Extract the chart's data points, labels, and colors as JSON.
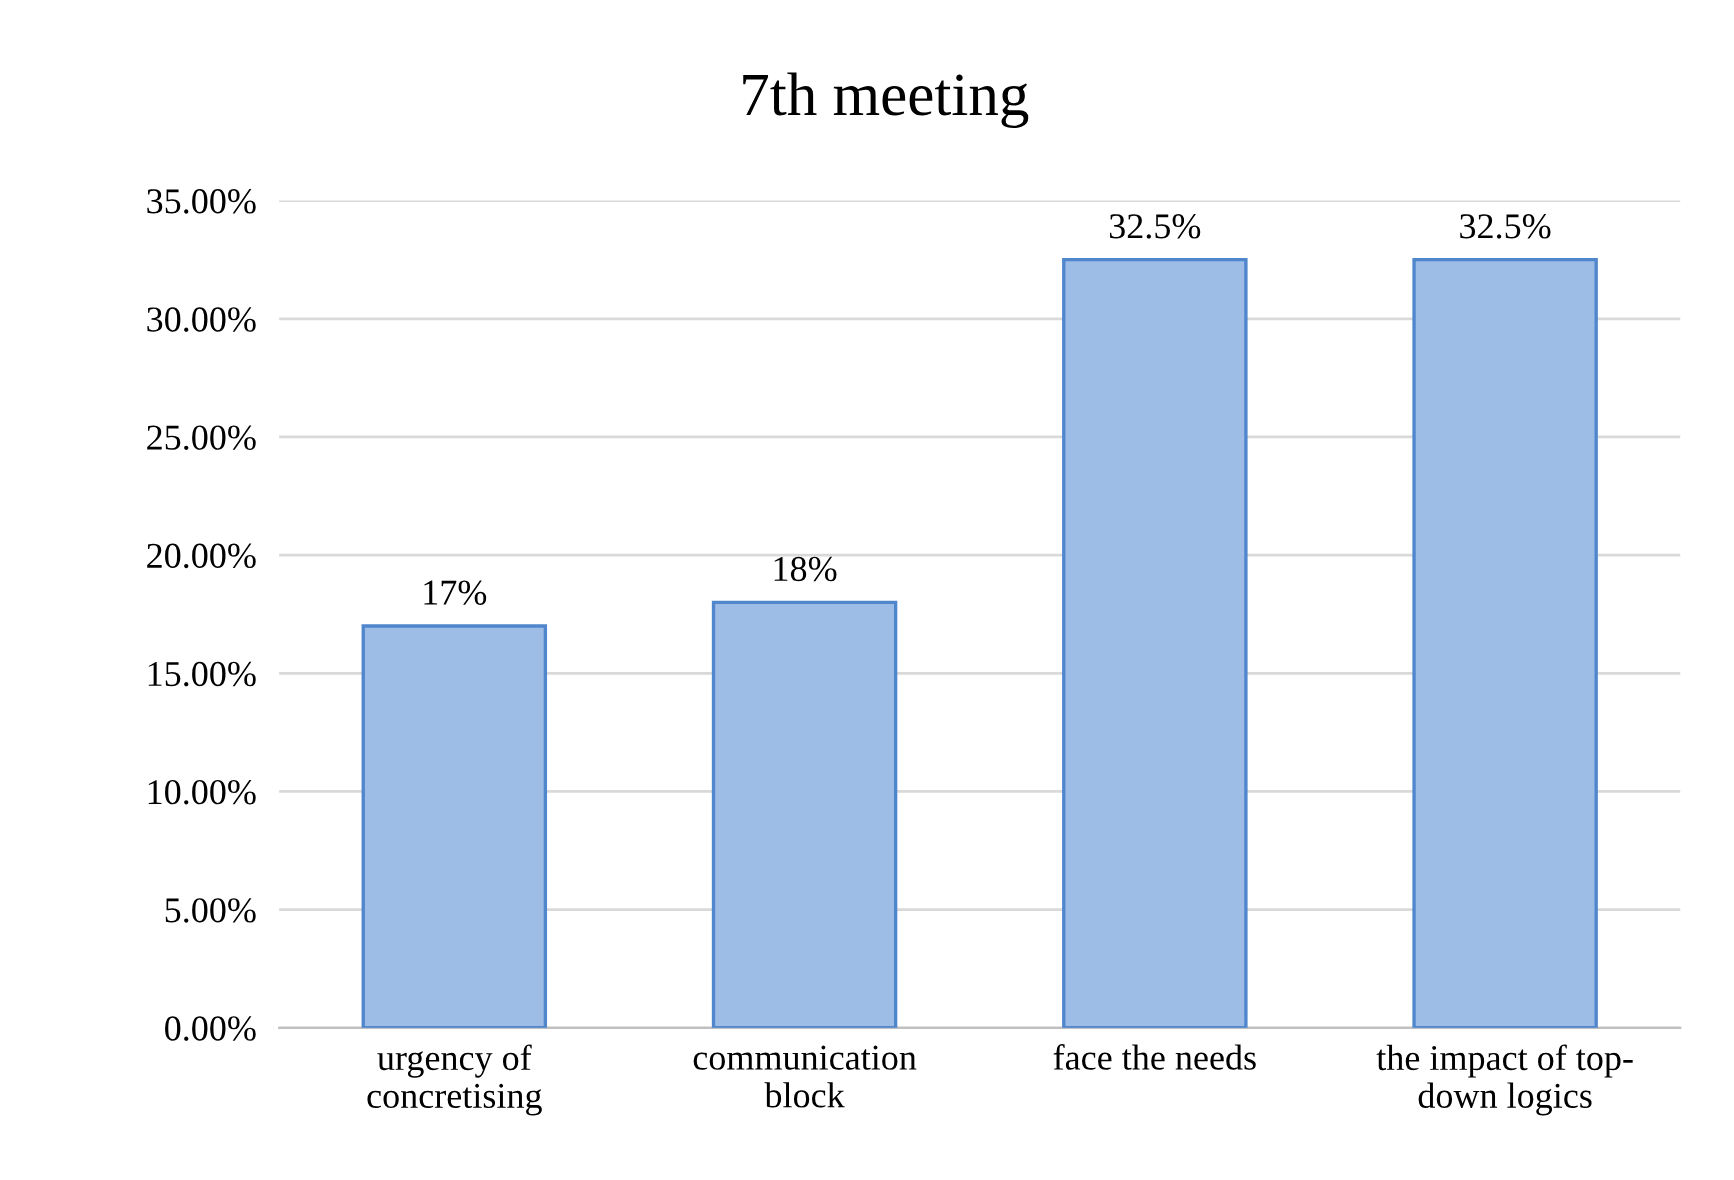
{
  "chart_data": {
    "type": "bar",
    "title": "7th meeting",
    "categories": [
      "urgency of\nconcretising",
      "communication\nblock",
      "face the needs",
      "the impact of top-\ndown logics"
    ],
    "values": [
      17,
      18,
      32.5,
      32.5
    ],
    "value_labels": [
      "17%",
      "18%",
      "32.5%",
      "32.5%"
    ],
    "color": "#9dbce6",
    "ylim": [
      0,
      35
    ],
    "yticks": [
      {
        "value": 0,
        "label": "0.00%"
      },
      {
        "value": 5,
        "label": "5.00%"
      },
      {
        "value": 10,
        "label": "10.00%"
      },
      {
        "value": 15,
        "label": "15.00%"
      },
      {
        "value": 20,
        "label": "20.00%"
      },
      {
        "value": 25,
        "label": "25.00%"
      },
      {
        "value": 30,
        "label": "30.00%"
      },
      {
        "value": 35,
        "label": "35.00%"
      }
    ],
    "grid": "y",
    "legend": false
  }
}
